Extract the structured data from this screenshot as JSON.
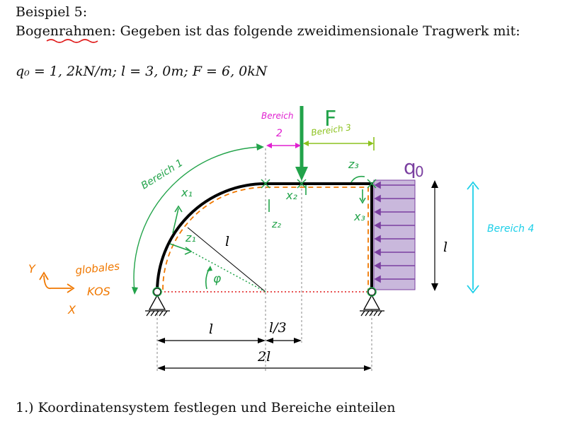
{
  "heading": "Beispiel 5:",
  "intro": {
    "prefix": "Bogen",
    "underlined": "rahmen",
    "rest": ": Gegeben ist das folgende zweidimensionale Tragwerk mit:"
  },
  "given": "q₀ = 1, 2kN/m; l = 3, 0m; F = 6, 0kN",
  "task": "1.) Koordinatensystem festlegen und Bereiche einteilen",
  "figure": {
    "load_F": "F",
    "load_q": "q",
    "load_q_sub": "0",
    "bereich1": "Bereich 1",
    "bereich2a": "Bereich",
    "bereich2b": "2",
    "bereich3": "Bereich 3",
    "bereich4": "Bereich 4",
    "global1": "globales",
    "global2": "KOS",
    "axis_y": "Y",
    "axis_x": "X",
    "x1": "x₁",
    "z1": "z₁",
    "x2": "x₂",
    "z2": "z₂",
    "x3": "x₃",
    "z3": "z₃",
    "phi": "φ",
    "radius": "l",
    "height": "l",
    "dim_l": "l",
    "dim_l3": "l/3",
    "dim_2l": "2l",
    "colors": {
      "frame": "#000000",
      "orange": "#f07800",
      "green": "#22a34a",
      "lightgreen": "#8cc21e",
      "magenta": "#e020d0",
      "cyan": "#1ccfe8",
      "purple": "#7a3fa0",
      "lilac": "#c9b8dc",
      "red": "#e01b1b"
    }
  }
}
